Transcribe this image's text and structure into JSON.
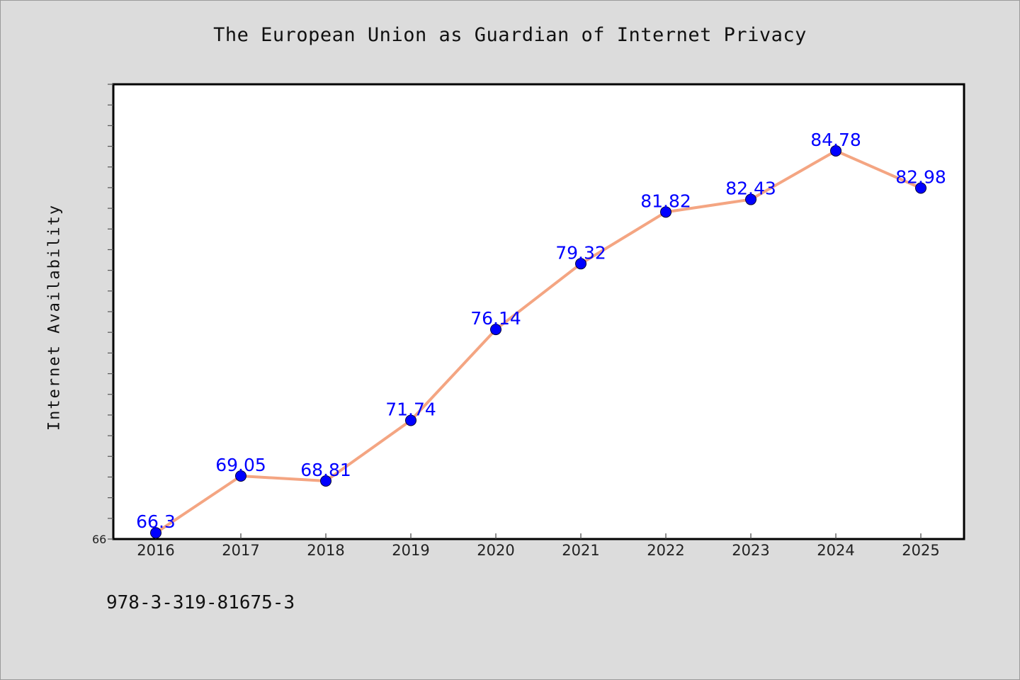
{
  "chart_data": {
    "type": "line",
    "title": "The European Union as Guardian of Internet Privacy",
    "xlabel": "",
    "ylabel": "Internet Availability",
    "categories": [
      "2016",
      "2017",
      "2018",
      "2019",
      "2020",
      "2021",
      "2022",
      "2023",
      "2024",
      "2025"
    ],
    "series": [
      {
        "values": [
          66.3,
          69.05,
          68.81,
          71.74,
          76.14,
          79.32,
          81.82,
          82.43,
          84.78,
          82.98
        ],
        "data_labels": [
          "66.3",
          "69.05",
          "68.81",
          "71.74",
          "76.14",
          "79.32",
          "81.82",
          "82.43",
          "84.78",
          "82.98"
        ]
      }
    ],
    "y_tick_labels": [
      "66"
    ],
    "ylim": [
      66,
      88
    ],
    "grid": false,
    "legend": "none",
    "colors": {
      "line": "#f4a582",
      "marker": "#0000ff",
      "data_label": "#0000ff",
      "plot_background": "#ffffff",
      "page_background": "#dcdcdc"
    }
  },
  "footer": {
    "text": "978-3-319-81675-3"
  }
}
